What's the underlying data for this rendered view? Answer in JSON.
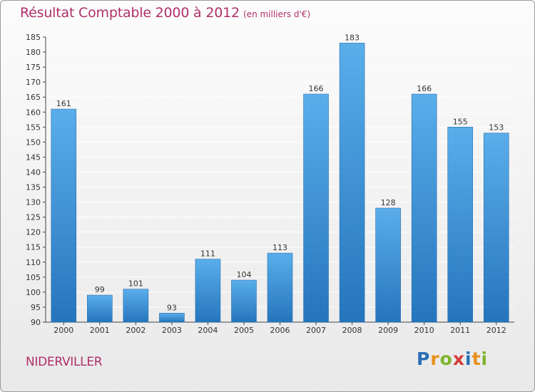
{
  "chart_data": {
    "type": "bar",
    "title": "Résultat Comptable 2000 à 2012",
    "subtitle": "(en milliers d'€)",
    "categories": [
      "2000",
      "2001",
      "2002",
      "2003",
      "2004",
      "2005",
      "2006",
      "2007",
      "2008",
      "2009",
      "2010",
      "2011",
      "2012"
    ],
    "values": [
      161,
      99,
      101,
      93,
      111,
      104,
      113,
      166,
      183,
      128,
      166,
      155,
      153
    ],
    "ylim": [
      90,
      185
    ],
    "yticks": [
      90,
      95,
      100,
      105,
      110,
      115,
      120,
      125,
      130,
      135,
      140,
      145,
      150,
      155,
      160,
      165,
      170,
      175,
      180,
      185
    ],
    "grid": true,
    "bar_color": "#3d8fd6"
  },
  "footer": {
    "city": "NIDERVILLER",
    "logo": "Proxiti"
  },
  "colors": {
    "title": "#b0306a",
    "grid": "#ffffff",
    "bar_top": "#5aaeea",
    "bar_bottom": "#2575bd"
  }
}
